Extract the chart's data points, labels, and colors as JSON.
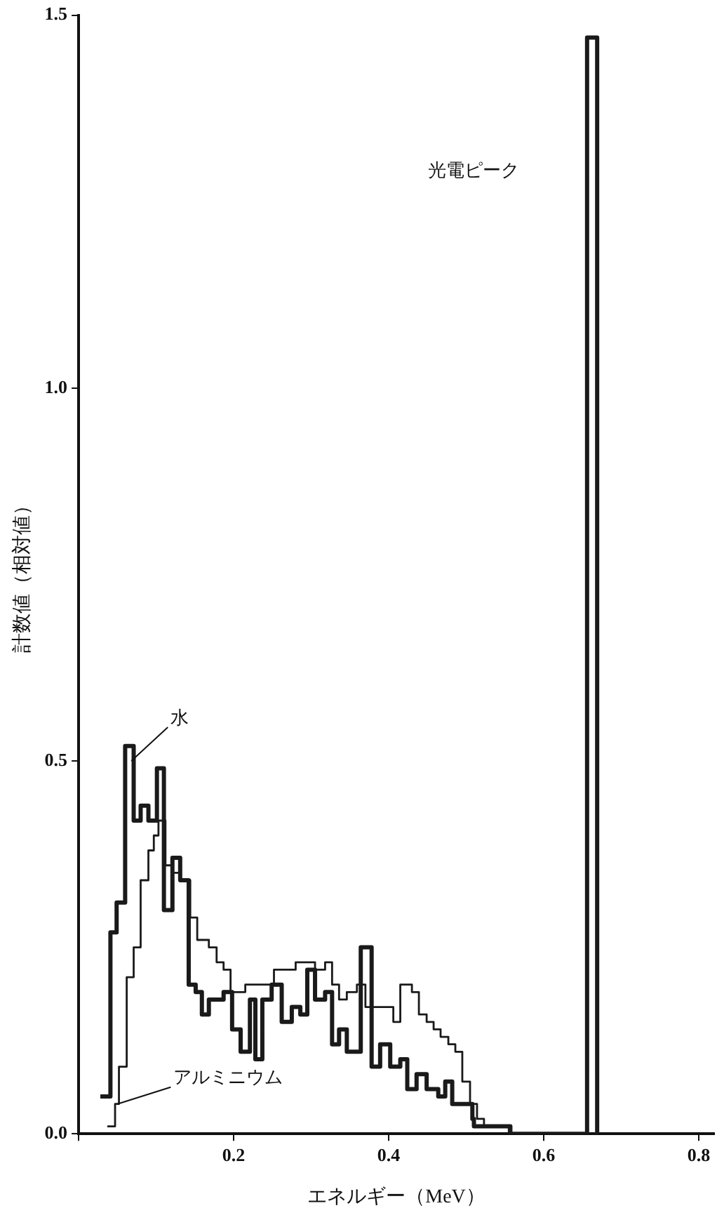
{
  "chart_data": {
    "type": "step",
    "xlabel": "エネルギー（MeV）",
    "ylabel": "計数値（相対値）",
    "xlim": [
      0,
      0.82
    ],
    "ylim": [
      0,
      1.5
    ],
    "xticks": [
      {
        "value": 0,
        "label": null
      },
      0.2,
      0.4,
      0.6,
      0.8
    ],
    "yticks": [
      {
        "value": 0,
        "label": "0.0"
      },
      0.5,
      {
        "value": 1,
        "label": "1.0"
      },
      1.5
    ],
    "grid": false,
    "legend": false,
    "marker": "none",
    "line_style": "solid",
    "series": [
      {
        "color": "#1a1a1a",
        "x": [
          0.028,
          0.041,
          0.049,
          0.06,
          0.071,
          0.08,
          0.09,
          0.101,
          0.11,
          0.121,
          0.131,
          0.142,
          0.151,
          0.159,
          0.168,
          0.187,
          0.198,
          0.209,
          0.221,
          0.228,
          0.237,
          0.249,
          0.262,
          0.275,
          0.286,
          0.295,
          0.305,
          0.318,
          0.327,
          0.336,
          0.346,
          0.364,
          0.378,
          0.389,
          0.402,
          0.415,
          0.424,
          0.436,
          0.449,
          0.464,
          0.473,
          0.482,
          0.508,
          0.51,
          0.529,
          0.557,
          0.656,
          0.669
        ],
        "values": [
          0.05,
          0.27,
          0.31,
          0.52,
          0.42,
          0.44,
          0.42,
          0.49,
          0.3,
          0.37,
          0.34,
          0.2,
          0.19,
          0.16,
          0.18,
          0.19,
          0.14,
          0.11,
          0.18,
          0.1,
          0.18,
          0.2,
          0.15,
          0.17,
          0.16,
          0.22,
          0.18,
          0.19,
          0.12,
          0.14,
          0.11,
          0.25,
          0.09,
          0.12,
          0.09,
          0.1,
          0.06,
          0.08,
          0.06,
          0.05,
          0.07,
          0.04,
          0.02,
          0.01,
          0.01,
          0,
          1.47,
          0
        ]
      },
      {
        "color": "#1a1a1a",
        "x": [
          0.037,
          0.047,
          0.052,
          0.062,
          0.071,
          0.08,
          0.09,
          0.097,
          0.103,
          0.112,
          0.121,
          0.131,
          0.144,
          0.153,
          0.168,
          0.178,
          0.187,
          0.196,
          0.215,
          0.243,
          0.252,
          0.267,
          0.28,
          0.295,
          0.305,
          0.318,
          0.327,
          0.336,
          0.346,
          0.359,
          0.37,
          0.393,
          0.406,
          0.415,
          0.43,
          0.439,
          0.449,
          0.458,
          0.467,
          0.477,
          0.486,
          0.495,
          0.505,
          0.514,
          0.523,
          0.533,
          0.555
        ],
        "values": [
          0.01,
          0.04,
          0.09,
          0.21,
          0.25,
          0.34,
          0.38,
          0.4,
          0.42,
          0.36,
          0.35,
          0.34,
          0.29,
          0.26,
          0.25,
          0.23,
          0.22,
          0.19,
          0.2,
          0.2,
          0.22,
          0.22,
          0.23,
          0.23,
          0.22,
          0.23,
          0.2,
          0.18,
          0.19,
          0.2,
          0.17,
          0.17,
          0.15,
          0.2,
          0.19,
          0.16,
          0.15,
          0.14,
          0.13,
          0.12,
          0.11,
          0.07,
          0.04,
          0.02,
          0.01,
          0.01,
          0
        ]
      }
    ],
    "annotations": [
      {
        "text": "水",
        "x": 0.068,
        "y": 0.5
      },
      {
        "text": "アルミニウム",
        "x": 0.05,
        "y": 0.04
      },
      "光電ピーク"
    ]
  }
}
